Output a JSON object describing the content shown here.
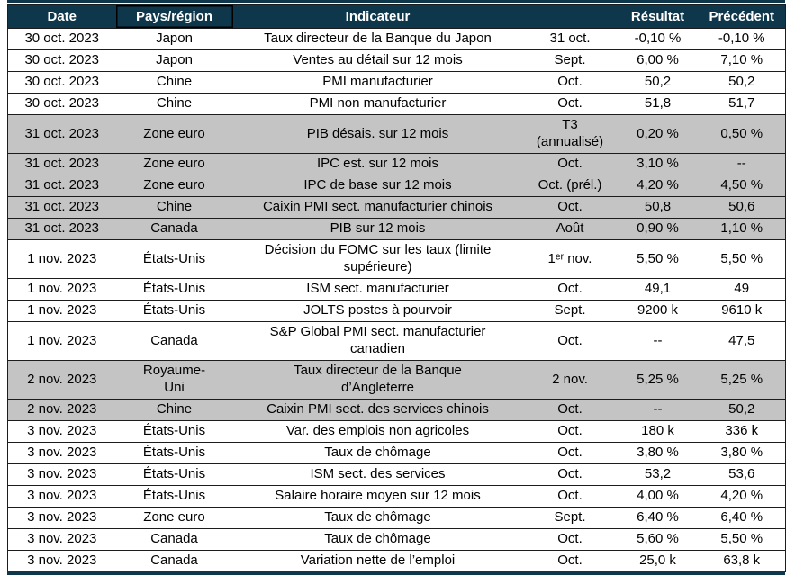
{
  "colors": {
    "header_bg": "#0E374B",
    "shaded_row_bg": "#C4C4C4",
    "border": "#1c1c1c",
    "header_text": "#ffffff",
    "body_text": "#000000"
  },
  "table": {
    "columns": [
      {
        "key": "date",
        "label": "Date"
      },
      {
        "key": "country",
        "label": "Pays/région"
      },
      {
        "key": "indicator",
        "label": "Indicateur"
      },
      {
        "key": "period",
        "label": ""
      },
      {
        "key": "result",
        "label": "Résultat"
      },
      {
        "key": "previous",
        "label": "Précédent"
      }
    ],
    "rows": [
      {
        "date": "30 oct. 2023",
        "country": "Japon",
        "indicator": "Taux directeur de la Banque du Japon",
        "period": "31 oct.",
        "result": "-0,10 %",
        "previous": "-0,10 %",
        "shaded": false,
        "tall": false
      },
      {
        "date": "30 oct. 2023",
        "country": "Japon",
        "indicator": "Ventes au détail sur 12 mois",
        "period": "Sept.",
        "result": "6,00 %",
        "previous": "7,10 %",
        "shaded": false,
        "tall": false
      },
      {
        "date": "30 oct. 2023",
        "country": "Chine",
        "indicator": "PMI manufacturier",
        "period": "Oct.",
        "result": "50,2",
        "previous": "50,2",
        "shaded": false,
        "tall": false
      },
      {
        "date": "30 oct. 2023",
        "country": "Chine",
        "indicator": "PMI non manufacturier",
        "period": "Oct.",
        "result": "51,8",
        "previous": "51,7",
        "shaded": false,
        "tall": false
      },
      {
        "date": "31 oct. 2023",
        "country": "Zone euro",
        "indicator": "PIB désais. sur 12 mois",
        "period": "T3\n(annualisé)",
        "result": "0,20 %",
        "previous": "0,50 %",
        "shaded": true,
        "tall": true
      },
      {
        "date": "31 oct. 2023",
        "country": "Zone euro",
        "indicator": "IPC est. sur 12 mois",
        "period": "Oct.",
        "result": "3,10 %",
        "previous": "--",
        "shaded": true,
        "tall": false
      },
      {
        "date": "31 oct. 2023",
        "country": "Zone euro",
        "indicator": "IPC de base sur 12 mois",
        "period": "Oct. (prél.)",
        "result": "4,20 %",
        "previous": "4,50 %",
        "shaded": true,
        "tall": false
      },
      {
        "date": "31 oct. 2023",
        "country": "Chine",
        "indicator": "Caixin PMI sect. manufacturier chinois",
        "period": "Oct.",
        "result": "50,8",
        "previous": "50,6",
        "shaded": true,
        "tall": false
      },
      {
        "date": "31 oct. 2023",
        "country": "Canada",
        "indicator": "PIB sur 12 mois",
        "period": "Août",
        "result": "0,90 %",
        "previous": "1,10 %",
        "shaded": true,
        "tall": false
      },
      {
        "date": "1 nov. 2023",
        "country": "États-Unis",
        "indicator": "Décision du FOMC sur les taux (limite\nsupérieure)",
        "period": "1ᵉʳ nov.",
        "result": "5,50 %",
        "previous": "5,50 %",
        "shaded": false,
        "tall": true
      },
      {
        "date": "1 nov. 2023",
        "country": "États-Unis",
        "indicator": "ISM sect. manufacturier",
        "period": "Oct.",
        "result": "49,1",
        "previous": "49",
        "shaded": false,
        "tall": false
      },
      {
        "date": "1 nov. 2023",
        "country": "États-Unis",
        "indicator": "JOLTS postes à pourvoir",
        "period": "Sept.",
        "result": "9200 k",
        "previous": "9610 k",
        "shaded": false,
        "tall": false
      },
      {
        "date": "1 nov. 2023",
        "country": "Canada",
        "indicator": "S&P Global PMI sect. manufacturier\ncanadien",
        "period": "Oct.",
        "result": "--",
        "previous": "47,5",
        "shaded": false,
        "tall": true
      },
      {
        "date": "2 nov. 2023",
        "country": "Royaume-\nUni",
        "indicator": "Taux directeur de la Banque\nd’Angleterre",
        "period": "2 nov.",
        "result": "5,25 %",
        "previous": "5,25 %",
        "shaded": true,
        "tall": true
      },
      {
        "date": "2 nov. 2023",
        "country": "Chine",
        "indicator": "Caixin PMI sect. des services chinois",
        "period": "Oct.",
        "result": "--",
        "previous": "50,2",
        "shaded": true,
        "tall": false
      },
      {
        "date": "3 nov. 2023",
        "country": "États-Unis",
        "indicator": "Var. des emplois non agricoles",
        "period": "Oct.",
        "result": "180 k",
        "previous": "336 k",
        "shaded": false,
        "tall": false
      },
      {
        "date": "3 nov. 2023",
        "country": "États-Unis",
        "indicator": "Taux de chômage",
        "period": "Oct.",
        "result": "3,80 %",
        "previous": "3,80 %",
        "shaded": false,
        "tall": false
      },
      {
        "date": "3 nov. 2023",
        "country": "États-Unis",
        "indicator": "ISM sect. des services",
        "period": "Oct.",
        "result": "53,2",
        "previous": "53,6",
        "shaded": false,
        "tall": false
      },
      {
        "date": "3 nov. 2023",
        "country": "États-Unis",
        "indicator": "Salaire horaire moyen sur 12 mois",
        "period": "Oct.",
        "result": "4,00 %",
        "previous": "4,20 %",
        "shaded": false,
        "tall": false
      },
      {
        "date": "3 nov. 2023",
        "country": "Zone euro",
        "indicator": "Taux de chômage",
        "period": "Sept.",
        "result": "6,40 %",
        "previous": "6,40 %",
        "shaded": false,
        "tall": false
      },
      {
        "date": "3 nov. 2023",
        "country": "Canada",
        "indicator": "Taux de chômage",
        "period": "Oct.",
        "result": "5,60 %",
        "previous": "5,50 %",
        "shaded": false,
        "tall": false
      },
      {
        "date": "3 nov. 2023",
        "country": "Canada",
        "indicator": "Variation nette de l’emploi",
        "period": "Oct.",
        "result": "25,0 k",
        "previous": "63,8 k",
        "shaded": false,
        "tall": false
      }
    ]
  }
}
